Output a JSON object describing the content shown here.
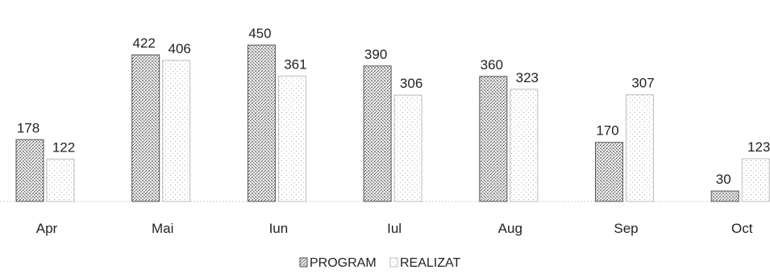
{
  "chart_data": {
    "type": "bar",
    "title": "",
    "xlabel": "",
    "ylabel": "",
    "categories": [
      "Apr",
      "Mai",
      "Iun",
      "Iul",
      "Aug",
      "Sep",
      "Oct"
    ],
    "series": [
      {
        "name": "PROGRAM",
        "values": [
          178,
          422,
          450,
          390,
          360,
          170,
          30
        ],
        "color": "#4a4a4a",
        "pattern": "dense-dots"
      },
      {
        "name": "REALIZAT",
        "values": [
          122,
          406,
          361,
          306,
          323,
          307,
          123
        ],
        "color": "#9a9a9a",
        "pattern": "sparse-dots"
      }
    ],
    "ylim": [
      0,
      480
    ],
    "grid": false,
    "legend_position": "bottom-center",
    "data_labels": true
  }
}
